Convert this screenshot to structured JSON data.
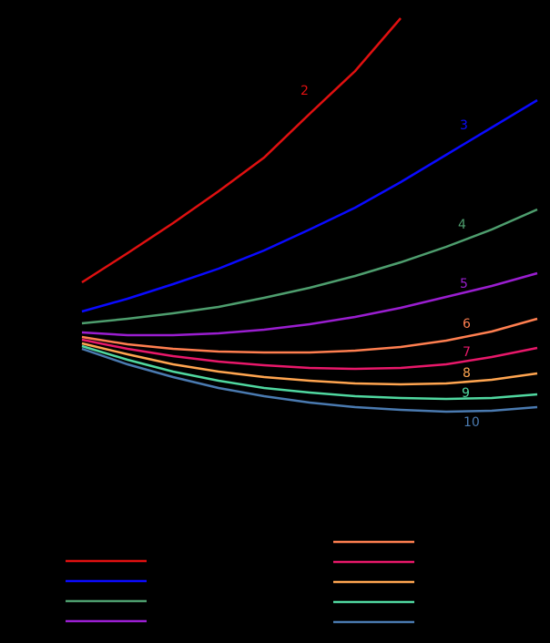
{
  "chart_data": {
    "type": "line",
    "x": [
      0,
      1,
      2,
      3,
      4,
      5,
      6,
      7,
      8,
      9,
      10
    ],
    "xlim": [
      0,
      10
    ],
    "ylim": [
      0,
      100
    ],
    "series": [
      {
        "name": "2",
        "color": "#e01010",
        "values": [
          38,
          44.4,
          51,
          58,
          65.4,
          75,
          84.4,
          96,
          null,
          null,
          null
        ]
      },
      {
        "name": "3",
        "color": "#0a0aff",
        "values": [
          31.6,
          34.4,
          37.6,
          41,
          45,
          49.6,
          54.4,
          60,
          66,
          72,
          78
        ]
      },
      {
        "name": "4",
        "color": "#4e9e6e",
        "values": [
          29,
          30,
          31.2,
          32.6,
          34.6,
          36.8,
          39.4,
          42.4,
          45.8,
          49.6,
          54
        ]
      },
      {
        "name": "5",
        "color": "#9a1ed0",
        "values": [
          27,
          26.4,
          26.4,
          26.8,
          27.6,
          28.8,
          30.4,
          32.4,
          34.8,
          37.2,
          40
        ]
      },
      {
        "name": "6",
        "color": "#ff7f50",
        "values": [
          26,
          24.4,
          23.4,
          22.8,
          22.6,
          22.6,
          23,
          23.8,
          25.2,
          27.2,
          30
        ]
      },
      {
        "name": "7",
        "color": "#e8186a",
        "values": [
          25.4,
          23.4,
          21.8,
          20.6,
          19.8,
          19.2,
          19,
          19.2,
          20,
          21.6,
          23.6
        ]
      },
      {
        "name": "8",
        "color": "#ffa550",
        "values": [
          24.6,
          22.2,
          20,
          18.4,
          17.2,
          16.4,
          15.8,
          15.6,
          15.8,
          16.6,
          18
        ]
      },
      {
        "name": "9",
        "color": "#50d8a0",
        "values": [
          24,
          21,
          18.4,
          16.4,
          14.8,
          13.8,
          13,
          12.6,
          12.4,
          12.6,
          13.4
        ]
      },
      {
        "name": "10",
        "color": "#4a7ab0",
        "values": [
          23.4,
          20,
          17.2,
          14.8,
          13,
          11.6,
          10.6,
          10,
          9.6,
          9.8,
          10.6
        ]
      }
    ]
  }
}
